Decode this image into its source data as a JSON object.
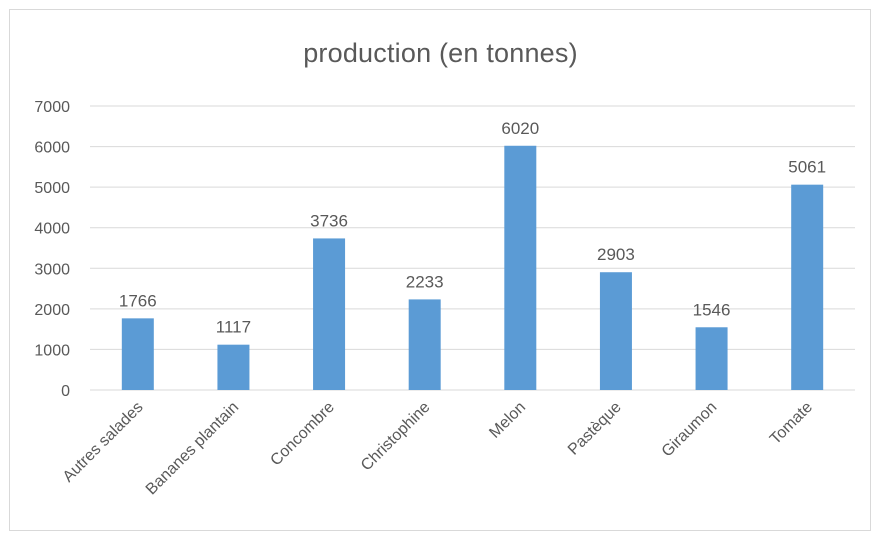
{
  "chart_data": {
    "type": "bar",
    "title": "production (en tonnes)",
    "xlabel": "",
    "ylabel": "",
    "categories": [
      "Autres salades",
      "Bananes plantain",
      "Concombre",
      "Christophine",
      "Melon",
      "Pastèque",
      "Giraumon",
      "Tomate"
    ],
    "series": [
      {
        "values": [
          1766,
          1117,
          3736,
          2233,
          6020,
          2903,
          1546,
          5061
        ],
        "color": "#5b9bd5"
      }
    ],
    "ylim": [
      0,
      7000
    ],
    "yticks": [
      0,
      1000,
      2000,
      3000,
      4000,
      5000,
      6000,
      7000
    ],
    "grid": true,
    "legend": "none",
    "data_labels": true
  }
}
